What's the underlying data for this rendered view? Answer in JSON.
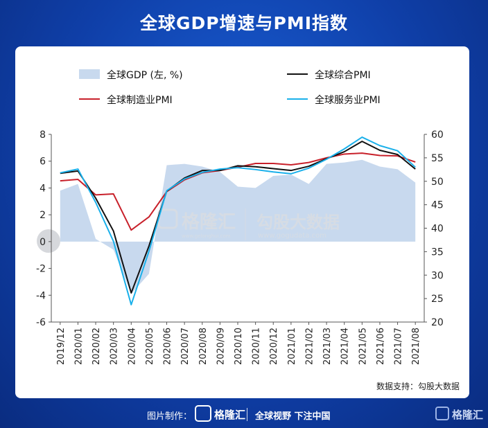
{
  "page": {
    "title": "全球GDP增速与PMI指数",
    "source_note": "数据支持：勾股大数据",
    "footer": {
      "made_by": "图片制作：",
      "logo_text": "格隆汇",
      "slogan": "全球视野 下注中国",
      "corner_logo_text": "格隆汇"
    },
    "watermark": {
      "brand1": "格隆汇",
      "brand1_url": "www.gelonghui.com",
      "brand2": "勾股大数据",
      "brand2_url": "www.gogudata.com"
    }
  },
  "colors": {
    "gdp_area": "#c8d9ee",
    "composite": "#111111",
    "manufacturing": "#c8202a",
    "services": "#1ab0ea",
    "background": "#0f3fa8"
  },
  "chart_data": {
    "type": "line",
    "categories": [
      "2019/12",
      "2020/01",
      "2020/02",
      "2020/03",
      "2020/04",
      "2020/05",
      "2020/06",
      "2020/07",
      "2020/08",
      "2020/09",
      "2020/10",
      "2020/11",
      "2020/12",
      "2021/01",
      "2021/02",
      "2021/03",
      "2021/04",
      "2021/05",
      "2021/06",
      "2021/07",
      "2021/08"
    ],
    "y_left": {
      "ticks": [
        8,
        6,
        4,
        2,
        0,
        -2,
        -4,
        -6
      ],
      "range": [
        -6,
        8
      ]
    },
    "y_right": {
      "ticks": [
        60,
        55,
        50,
        45,
        40,
        35,
        30,
        25,
        20
      ],
      "range": [
        20,
        60
      ]
    },
    "series": [
      {
        "name": "全球GDP (左, %)",
        "axis": "left",
        "kind": "area",
        "values": [
          3.8,
          4.3,
          0.2,
          -0.6,
          -3.9,
          -2.4,
          5.7,
          5.8,
          5.6,
          5.2,
          4.1,
          4.0,
          4.9,
          5.0,
          4.3,
          5.8,
          5.9,
          6.1,
          5.6,
          5.4,
          4.4
        ]
      },
      {
        "name": "全球综合PMI",
        "axis": "right",
        "kind": "line",
        "values": [
          51.7,
          52.2,
          46.4,
          39.4,
          26.2,
          36.2,
          47.9,
          50.7,
          52.3,
          52.3,
          53.3,
          53.1,
          52.7,
          52.3,
          53.2,
          54.8,
          56.3,
          58.5,
          56.6,
          55.7,
          52.6
        ]
      },
      {
        "name": "全球制造业PMI",
        "axis": "right",
        "kind": "line",
        "values": [
          50.1,
          50.4,
          47.1,
          47.3,
          39.6,
          42.4,
          47.8,
          50.3,
          51.8,
          52.3,
          53.0,
          53.8,
          53.8,
          53.5,
          54.0,
          55.0,
          55.8,
          56.0,
          55.5,
          55.4,
          54.1
        ]
      },
      {
        "name": "全球服务业PMI",
        "axis": "right",
        "kind": "line",
        "values": [
          51.8,
          52.6,
          45.5,
          37.2,
          23.7,
          35.1,
          48.0,
          50.5,
          51.9,
          52.6,
          52.9,
          52.5,
          52.0,
          51.6,
          52.8,
          54.7,
          56.9,
          59.4,
          57.6,
          56.5,
          53.0
        ]
      }
    ],
    "legend_placement": "top",
    "grid": false
  }
}
